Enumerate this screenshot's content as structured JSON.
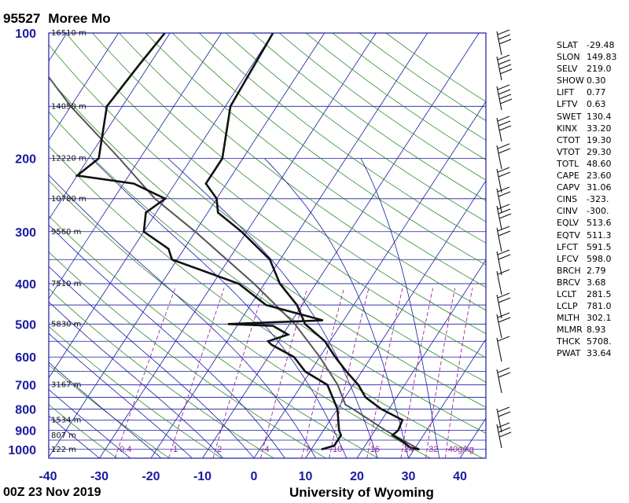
{
  "station": {
    "id": "95527",
    "name": "Moree Mo"
  },
  "footer": {
    "time": "00Z 23 Nov 2019",
    "source": "University of Wyoming"
  },
  "indices": [
    {
      "name": "SLAT",
      "value": "-29.48"
    },
    {
      "name": "SLON",
      "value": "149.83"
    },
    {
      "name": "SELV",
      "value": "219.0"
    },
    {
      "name": "SHOW",
      "value": "0.30"
    },
    {
      "name": "LIFT",
      "value": "0.77"
    },
    {
      "name": "LFTV",
      "value": "0.63"
    },
    {
      "name": "SWET",
      "value": "130.4"
    },
    {
      "name": "KINX",
      "value": "33.20"
    },
    {
      "name": "CTOT",
      "value": "19.30"
    },
    {
      "name": "VTOT",
      "value": "29.30"
    },
    {
      "name": "TOTL",
      "value": "48.60"
    },
    {
      "name": "CAPE",
      "value": "23.60"
    },
    {
      "name": "CAPV",
      "value": "31.06"
    },
    {
      "name": "CINS",
      "value": "-323."
    },
    {
      "name": "CINV",
      "value": "-300."
    },
    {
      "name": "EQLV",
      "value": "513.6"
    },
    {
      "name": "EQTV",
      "value": "511.3"
    },
    {
      "name": "LFCT",
      "value": "591.5"
    },
    {
      "name": "LFCV",
      "value": "598.0"
    },
    {
      "name": "BRCH",
      "value": "2.79"
    },
    {
      "name": "BRCV",
      "value": "3.68"
    },
    {
      "name": "LCLT",
      "value": "281.5"
    },
    {
      "name": "LCLP",
      "value": "781.0"
    },
    {
      "name": "MLTH",
      "value": "302.1"
    },
    {
      "name": "MLMR",
      "value": "8.93"
    },
    {
      "name": "THCK",
      "value": "5708."
    },
    {
      "name": "PWAT",
      "value": "33.64"
    }
  ],
  "chart_data": {
    "type": "skew-t",
    "x_axis": {
      "label_ticks": [
        -40,
        -30,
        -20,
        -10,
        0,
        10,
        20,
        30,
        40
      ],
      "unit": "°C"
    },
    "y_axis": {
      "label_ticks": [
        100,
        200,
        300,
        400,
        500,
        600,
        700,
        800,
        900,
        1000
      ],
      "scale": "log",
      "range": [
        100,
        1050
      ],
      "unit": "hPa"
    },
    "height_labels": [
      {
        "p": 100,
        "text": "16510 m"
      },
      {
        "p": 150,
        "text": "14050 m"
      },
      {
        "p": 200,
        "text": "12220 m"
      },
      {
        "p": 250,
        "text": "10780 m"
      },
      {
        "p": 300,
        "text": "9560 m"
      },
      {
        "p": 400,
        "text": "7510 m"
      },
      {
        "p": 500,
        "text": "5830 m"
      },
      {
        "p": 700,
        "text": "3167 m"
      },
      {
        "p": 850,
        "text": "1534 m"
      },
      {
        "p": 925,
        "text": "807 m"
      },
      {
        "p": 1000,
        "text": "122 m"
      }
    ],
    "mixing_ratio_labels": [
      "0.4",
      "1",
      "2",
      "4",
      "7",
      "10",
      "16",
      "24",
      "32",
      "40g/kg"
    ],
    "temperature": [
      {
        "p": 1000,
        "t": 31
      },
      {
        "p": 990,
        "t": 29
      },
      {
        "p": 960,
        "t": 27
      },
      {
        "p": 925,
        "t": 24
      },
      {
        "p": 900,
        "t": 24.5
      },
      {
        "p": 850,
        "t": 24
      },
      {
        "p": 800,
        "t": 18.5
      },
      {
        "p": 750,
        "t": 14
      },
      {
        "p": 700,
        "t": 11
      },
      {
        "p": 650,
        "t": 7
      },
      {
        "p": 600,
        "t": 3
      },
      {
        "p": 550,
        "t": -1
      },
      {
        "p": 500,
        "t": -7
      },
      {
        "p": 450,
        "t": -11
      },
      {
        "p": 400,
        "t": -17
      },
      {
        "p": 350,
        "t": -22
      },
      {
        "p": 300,
        "t": -31
      },
      {
        "p": 270,
        "t": -38
      },
      {
        "p": 250,
        "t": -40
      },
      {
        "p": 230,
        "t": -44
      },
      {
        "p": 200,
        "t": -44
      },
      {
        "p": 150,
        "t": -49
      },
      {
        "p": 100,
        "t": -50
      }
    ],
    "dewpoint": [
      {
        "p": 1000,
        "t": 12
      },
      {
        "p": 980,
        "t": 14
      },
      {
        "p": 925,
        "t": 14
      },
      {
        "p": 900,
        "t": 13
      },
      {
        "p": 800,
        "t": 10
      },
      {
        "p": 700,
        "t": 5
      },
      {
        "p": 650,
        "t": -1
      },
      {
        "p": 600,
        "t": -5
      },
      {
        "p": 560,
        "t": -11
      },
      {
        "p": 550,
        "t": -12
      },
      {
        "p": 530,
        "t": -9
      },
      {
        "p": 505,
        "t": -13
      },
      {
        "p": 500,
        "t": -22
      },
      {
        "p": 490,
        "t": -4
      },
      {
        "p": 450,
        "t": -17
      },
      {
        "p": 400,
        "t": -25
      },
      {
        "p": 350,
        "t": -41
      },
      {
        "p": 330,
        "t": -43
      },
      {
        "p": 300,
        "t": -50
      },
      {
        "p": 270,
        "t": -52
      },
      {
        "p": 250,
        "t": -50
      },
      {
        "p": 230,
        "t": -58
      },
      {
        "p": 220,
        "t": -70
      },
      {
        "p": 200,
        "t": -68
      },
      {
        "p": 150,
        "t": -73
      },
      {
        "p": 120,
        "t": -72
      },
      {
        "p": 100,
        "t": -71
      }
    ],
    "parcel": [
      {
        "p": 1000,
        "t": 31
      },
      {
        "p": 900,
        "t": 22
      },
      {
        "p": 800,
        "t": 13
      },
      {
        "p": 781,
        "t": 11
      },
      {
        "p": 700,
        "t": 7
      },
      {
        "p": 600,
        "t": 0
      },
      {
        "p": 500,
        "t": -9
      },
      {
        "p": 400,
        "t": -22
      },
      {
        "p": 300,
        "t": -40
      },
      {
        "p": 250,
        "t": -52
      },
      {
        "p": 200,
        "t": -64
      },
      {
        "p": 150,
        "t": -80
      },
      {
        "p": 100,
        "t": -100
      }
    ]
  }
}
